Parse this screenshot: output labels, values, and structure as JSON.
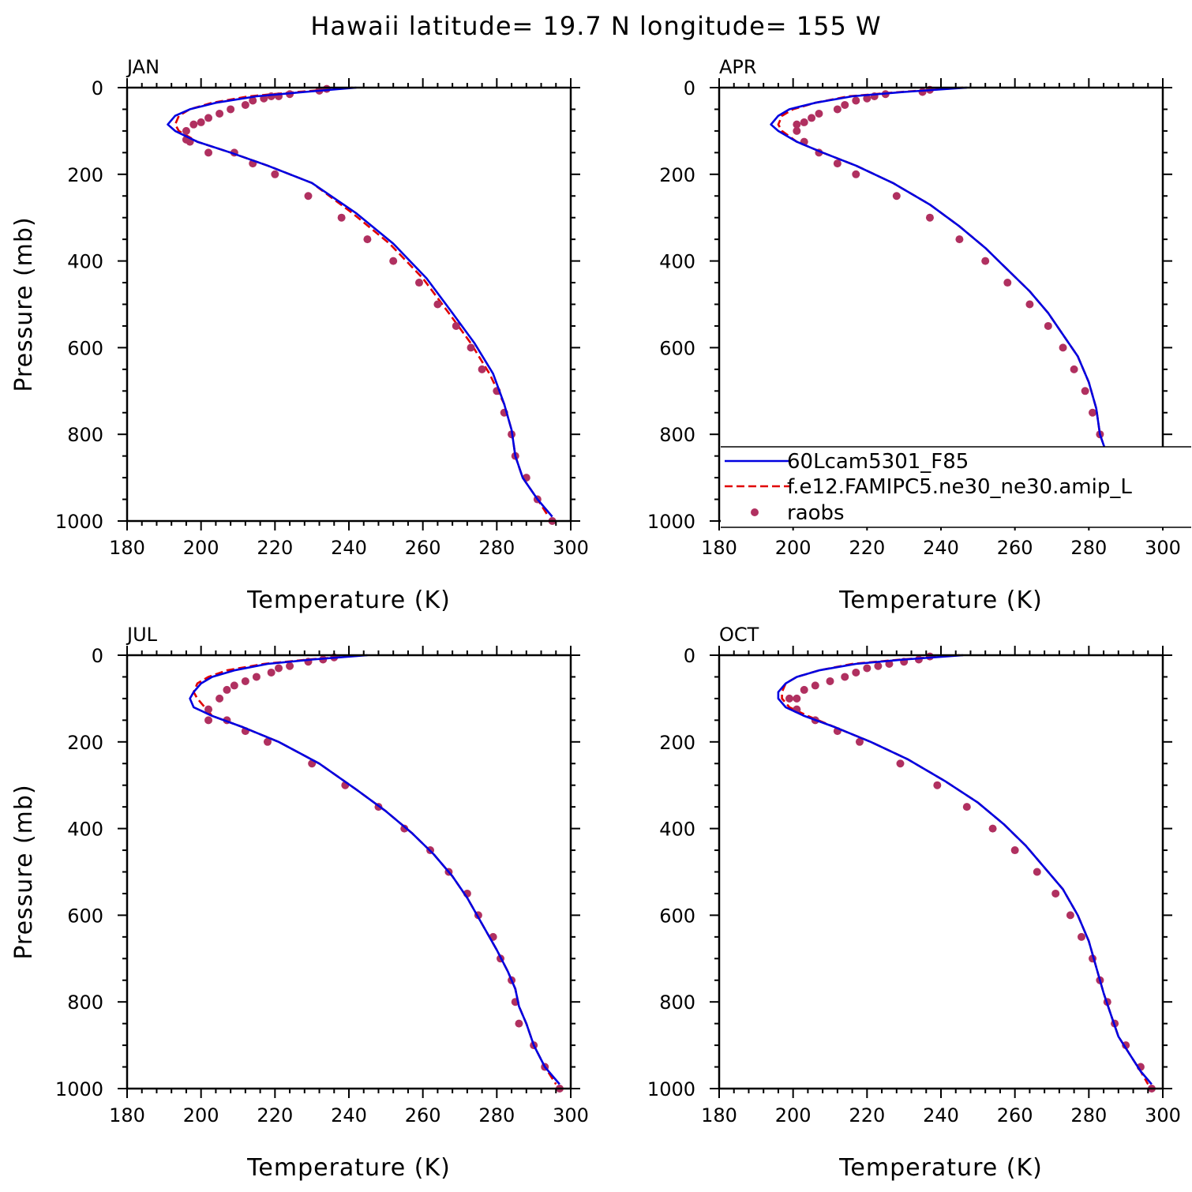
{
  "title": "Hawaii  latitude= 19.7 N longitude= 155 W",
  "colors": {
    "model1": "#0000e0",
    "model2": "#e00000",
    "obs": "#b03060"
  },
  "chart_data": [
    {
      "type": "line",
      "panel": "JAN",
      "xlabel": "Temperature (K)",
      "ylabel": "Pressure (mb)",
      "xlim": [
        180,
        300
      ],
      "ylim": [
        1000,
        0
      ],
      "xticks": [
        180,
        200,
        220,
        240,
        260,
        280,
        300
      ],
      "yticks": [
        0,
        200,
        400,
        600,
        800,
        1000
      ],
      "series": [
        {
          "name": "60Lcam5301_F85",
          "style": "solid",
          "x": [
            242,
            228,
            215,
            204,
            197,
            193,
            191,
            193,
            199,
            208,
            218,
            230,
            242,
            252,
            261,
            268,
            274,
            279,
            282,
            284,
            285,
            287,
            291,
            295
          ],
          "y": [
            0,
            10,
            20,
            35,
            50,
            65,
            85,
            100,
            125,
            150,
            180,
            220,
            290,
            360,
            440,
            520,
            590,
            660,
            730,
            790,
            850,
            900,
            950,
            990
          ]
        },
        {
          "name": "f.e12.FAMIPC5.ne30_ne30.amip_L",
          "style": "dashed",
          "x": [
            241,
            226,
            213,
            203,
            197,
            194,
            193,
            194,
            199,
            208,
            218,
            230,
            241,
            251,
            260,
            267,
            273,
            278,
            282,
            284,
            285,
            287,
            291,
            294
          ],
          "y": [
            0,
            10,
            20,
            35,
            50,
            65,
            85,
            100,
            125,
            150,
            180,
            220,
            290,
            360,
            440,
            520,
            590,
            660,
            730,
            790,
            850,
            900,
            950,
            990
          ]
        },
        {
          "name": "raobs",
          "style": "dots",
          "x": [
            234,
            232,
            224,
            221,
            219,
            217,
            214,
            212,
            208,
            205,
            202,
            200,
            198,
            196,
            196,
            197,
            202,
            209,
            214,
            220,
            229,
            238,
            245,
            252,
            259,
            264,
            269,
            273,
            276,
            280,
            282,
            284,
            285,
            288,
            291,
            295
          ],
          "y": [
            3,
            7,
            15,
            20,
            20,
            25,
            30,
            40,
            50,
            60,
            70,
            80,
            85,
            100,
            120,
            125,
            150,
            150,
            175,
            200,
            250,
            300,
            350,
            400,
            450,
            500,
            550,
            600,
            650,
            700,
            750,
            800,
            850,
            900,
            950,
            1000
          ]
        }
      ]
    },
    {
      "type": "line",
      "panel": "APR",
      "xlabel": "Temperature (K)",
      "ylabel": "",
      "xlim": [
        180,
        300
      ],
      "ylim": [
        1000,
        0
      ],
      "xticks": [
        180,
        200,
        220,
        240,
        260,
        280,
        300
      ],
      "yticks": [
        0,
        200,
        400,
        600,
        800,
        1000
      ],
      "series": [
        {
          "name": "60Lcam5301_F85",
          "style": "solid",
          "x": [
            247,
            230,
            216,
            206,
            199,
            196,
            194,
            196,
            201,
            208,
            217,
            227,
            237,
            245,
            252,
            258,
            264,
            269,
            273,
            277,
            280,
            282,
            283,
            285,
            288,
            292,
            295
          ],
          "y": [
            0,
            10,
            20,
            35,
            50,
            65,
            85,
            100,
            125,
            150,
            180,
            220,
            270,
            320,
            370,
            420,
            470,
            520,
            570,
            620,
            680,
            740,
            800,
            850,
            900,
            950,
            990
          ]
        },
        {
          "name": "f.e12.FAMIPC5.ne30_ne30.amip_L",
          "style": "dashed",
          "x": [
            246,
            229,
            215,
            206,
            200,
            197,
            196,
            197,
            201,
            208,
            217,
            227,
            237,
            245,
            252,
            258,
            264,
            269,
            273,
            277,
            280,
            282,
            283,
            285,
            288,
            292,
            295
          ],
          "y": [
            0,
            10,
            20,
            35,
            50,
            65,
            85,
            100,
            125,
            150,
            180,
            220,
            270,
            320,
            370,
            420,
            470,
            520,
            570,
            620,
            680,
            740,
            800,
            850,
            900,
            950,
            990
          ]
        },
        {
          "name": "raobs",
          "style": "dots",
          "x": [
            237,
            235,
            225,
            222,
            220,
            217,
            214,
            212,
            207,
            205,
            203,
            201,
            201,
            203,
            207,
            212,
            217,
            228,
            237,
            245,
            252,
            258,
            264,
            269,
            273,
            276,
            279,
            281,
            283,
            285,
            288,
            291,
            295
          ],
          "y": [
            5,
            10,
            15,
            20,
            25,
            30,
            40,
            50,
            60,
            70,
            80,
            85,
            100,
            125,
            150,
            175,
            200,
            250,
            300,
            350,
            400,
            450,
            500,
            550,
            600,
            650,
            700,
            750,
            800,
            850,
            900,
            950,
            1000
          ]
        }
      ],
      "legend": {
        "entries": [
          "60Lcam5301_F85",
          "f.e12.FAMIPC5.ne30_ne30.amip_L",
          "raobs"
        ]
      }
    },
    {
      "type": "line",
      "panel": "JUL",
      "xlabel": "Temperature (K)",
      "ylabel": "Pressure (mb)",
      "xlim": [
        180,
        300
      ],
      "ylim": [
        1000,
        0
      ],
      "xticks": [
        180,
        200,
        220,
        240,
        260,
        280,
        300
      ],
      "yticks": [
        0,
        200,
        400,
        600,
        800,
        1000
      ],
      "series": [
        {
          "name": "60Lcam5301_F85",
          "style": "solid",
          "x": [
            245,
            230,
            218,
            209,
            203,
            200,
            198,
            197,
            198,
            203,
            211,
            221,
            232,
            242,
            250,
            257,
            263,
            268,
            272,
            276,
            280,
            283,
            285,
            286,
            288,
            290,
            293,
            297
          ],
          "y": [
            0,
            10,
            20,
            35,
            50,
            65,
            85,
            100,
            120,
            140,
            165,
            200,
            250,
            310,
            360,
            410,
            460,
            510,
            560,
            620,
            680,
            730,
            770,
            810,
            850,
            900,
            950,
            990
          ]
        },
        {
          "name": "f.e12.FAMIPC5.ne30_ne30.amip_L",
          "style": "dashed",
          "x": [
            244,
            229,
            217,
            207,
            202,
            199,
            198,
            199,
            203,
            211,
            221,
            232,
            242,
            250,
            257,
            263,
            268,
            272,
            276,
            280,
            283,
            285,
            286,
            288,
            290,
            293,
            296
          ],
          "y": [
            0,
            10,
            20,
            35,
            50,
            65,
            85,
            100,
            140,
            165,
            200,
            250,
            310,
            360,
            410,
            460,
            510,
            560,
            620,
            680,
            730,
            770,
            810,
            850,
            900,
            950,
            990
          ]
        },
        {
          "name": "raobs",
          "style": "dots",
          "x": [
            236,
            233,
            229,
            224,
            221,
            219,
            215,
            212,
            209,
            207,
            205,
            202,
            202,
            207,
            212,
            218,
            230,
            239,
            248,
            255,
            262,
            267,
            272,
            275,
            279,
            281,
            284,
            285,
            286,
            290,
            293,
            297
          ],
          "y": [
            5,
            10,
            15,
            25,
            30,
            40,
            50,
            60,
            70,
            80,
            100,
            125,
            150,
            150,
            175,
            200,
            250,
            300,
            350,
            400,
            450,
            500,
            550,
            600,
            650,
            700,
            750,
            800,
            850,
            900,
            950,
            1000
          ]
        }
      ]
    },
    {
      "type": "line",
      "panel": "OCT",
      "xlabel": "Temperature (K)",
      "ylabel": "",
      "xlim": [
        180,
        300
      ],
      "ylim": [
        1000,
        0
      ],
      "xticks": [
        180,
        200,
        220,
        240,
        260,
        280,
        300
      ],
      "yticks": [
        0,
        200,
        400,
        600,
        800,
        1000
      ],
      "series": [
        {
          "name": "60Lcam5301_F85",
          "style": "solid",
          "x": [
            246,
            230,
            217,
            207,
            201,
            198,
            196,
            196,
            198,
            203,
            211,
            221,
            231,
            241,
            250,
            257,
            263,
            268,
            273,
            277,
            280,
            282,
            284,
            286,
            288,
            291,
            294,
            297
          ],
          "y": [
            0,
            10,
            20,
            35,
            50,
            65,
            85,
            100,
            120,
            140,
            165,
            200,
            240,
            290,
            340,
            390,
            440,
            490,
            540,
            600,
            660,
            720,
            780,
            830,
            880,
            920,
            960,
            990
          ]
        },
        {
          "name": "f.e12.FAMIPC5.ne30_ne30.amip_L",
          "style": "dashed",
          "x": [
            245,
            229,
            216,
            207,
            201,
            198,
            197,
            197,
            199,
            204,
            211,
            221,
            231,
            241,
            250,
            257,
            263,
            268,
            273,
            277,
            280,
            282,
            284,
            286,
            288,
            291,
            294,
            296
          ],
          "y": [
            0,
            10,
            20,
            35,
            50,
            65,
            85,
            100,
            120,
            140,
            165,
            200,
            240,
            290,
            340,
            390,
            440,
            490,
            540,
            600,
            660,
            720,
            780,
            830,
            880,
            920,
            960,
            990
          ]
        },
        {
          "name": "raobs",
          "style": "dots",
          "x": [
            237,
            234,
            230,
            226,
            223,
            220,
            217,
            214,
            210,
            206,
            203,
            201,
            199,
            201,
            206,
            212,
            218,
            229,
            239,
            247,
            254,
            260,
            266,
            271,
            275,
            278,
            281,
            283,
            285,
            287,
            290,
            294,
            297
          ],
          "y": [
            3,
            10,
            15,
            20,
            25,
            30,
            40,
            50,
            60,
            70,
            80,
            100,
            100,
            125,
            150,
            175,
            200,
            250,
            300,
            350,
            400,
            450,
            500,
            550,
            600,
            650,
            700,
            750,
            800,
            850,
            900,
            950,
            1000
          ]
        }
      ]
    }
  ]
}
